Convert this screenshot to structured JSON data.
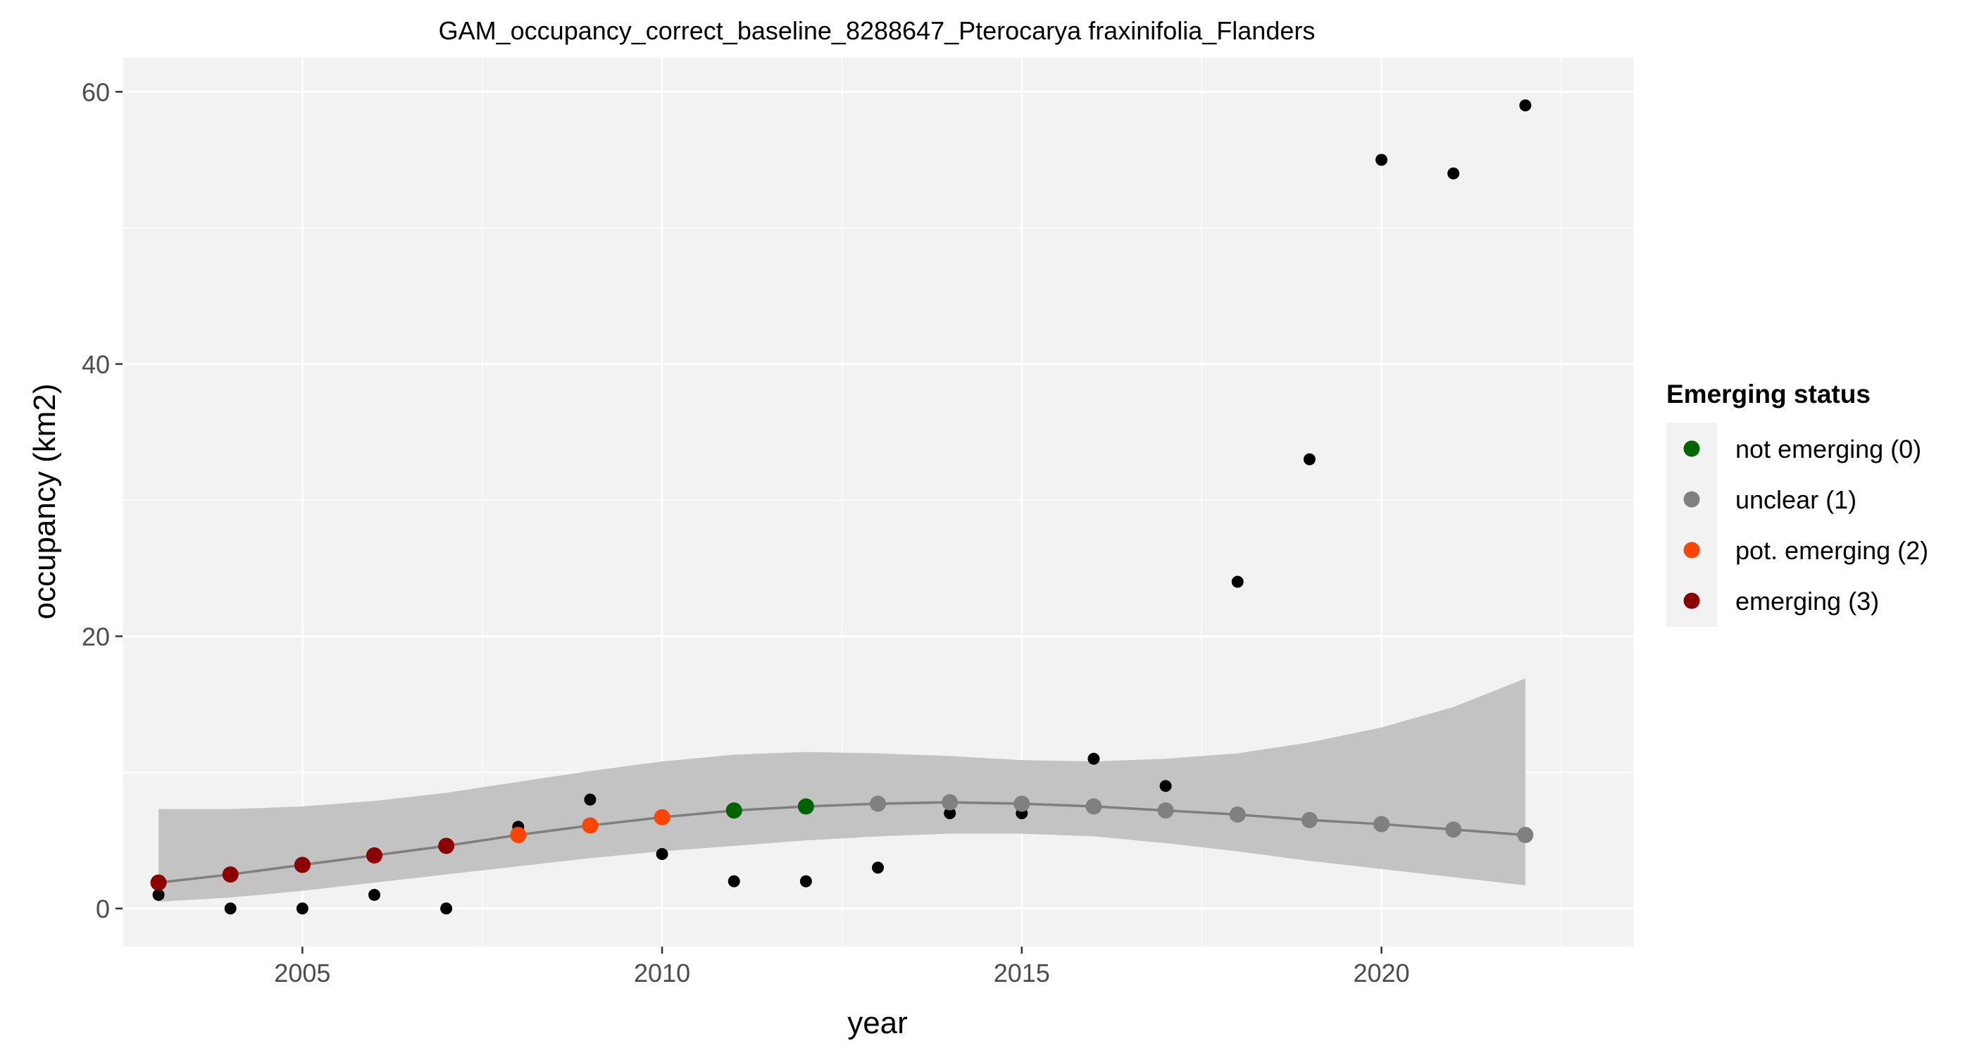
{
  "chart_data": {
    "type": "scatter",
    "title": "GAM_occupancy_correct_baseline_8288647_Pterocarya fraxinifolia_Flanders",
    "xlabel": "year",
    "ylabel": "occupancy (km2)",
    "xlim": [
      2002.5,
      2023.5
    ],
    "ylim": [
      -2.8,
      62.5
    ],
    "x_ticks": [
      2005,
      2010,
      2015,
      2020
    ],
    "y_ticks": [
      0,
      20,
      40,
      60
    ],
    "x_tick_labels": [
      "2005",
      "2010",
      "2015",
      "2020"
    ],
    "y_tick_labels": [
      "0",
      "20",
      "40",
      "60"
    ],
    "grid": true,
    "legend": {
      "title": "Emerging status",
      "position": "right",
      "entries": [
        {
          "label": "not emerging (0)",
          "color": "#006400"
        },
        {
          "label": "unclear (1)",
          "color": "#808080"
        },
        {
          "label": "pot. emerging (2)",
          "color": "#ff4500"
        },
        {
          "label": "emerging (3)",
          "color": "#8b0000"
        }
      ]
    },
    "observed": {
      "x": [
        2003,
        2004,
        2005,
        2006,
        2007,
        2008,
        2009,
        2010,
        2011,
        2012,
        2013,
        2014,
        2015,
        2016,
        2017,
        2018,
        2019,
        2020,
        2021,
        2022
      ],
      "y": [
        1,
        0,
        0,
        1,
        0,
        6,
        8,
        4,
        2,
        2,
        3,
        7,
        7,
        11,
        9,
        24,
        33,
        55,
        54,
        59
      ],
      "color": "#000000"
    },
    "fit": {
      "x": [
        2003,
        2004,
        2005,
        2006,
        2007,
        2008,
        2009,
        2010,
        2011,
        2012,
        2013,
        2014,
        2015,
        2016,
        2017,
        2018,
        2019,
        2020,
        2021,
        2022
      ],
      "y": [
        1.9,
        2.5,
        3.2,
        3.9,
        4.6,
        5.4,
        6.1,
        6.7,
        7.2,
        7.5,
        7.7,
        7.8,
        7.7,
        7.5,
        7.2,
        6.9,
        6.5,
        6.2,
        5.8,
        5.4
      ],
      "lower": [
        0.5,
        0.8,
        1.3,
        1.9,
        2.5,
        3.1,
        3.7,
        4.2,
        4.6,
        5.0,
        5.3,
        5.5,
        5.5,
        5.3,
        4.8,
        4.2,
        3.5,
        2.9,
        2.3,
        1.7
      ],
      "upper": [
        7.3,
        7.3,
        7.5,
        7.9,
        8.5,
        9.3,
        10.1,
        10.8,
        11.3,
        11.5,
        11.4,
        11.2,
        10.9,
        10.8,
        11.0,
        11.4,
        12.2,
        13.3,
        14.8,
        16.9
      ],
      "status": [
        3,
        3,
        3,
        3,
        3,
        2,
        2,
        2,
        0,
        0,
        1,
        1,
        1,
        1,
        1,
        1,
        1,
        1,
        1,
        1
      ],
      "line_color": "#7f7f7f",
      "band_color": "#c3c3c3"
    },
    "panel_color": "#f2f2f2",
    "grid_color": "#ffffff"
  }
}
